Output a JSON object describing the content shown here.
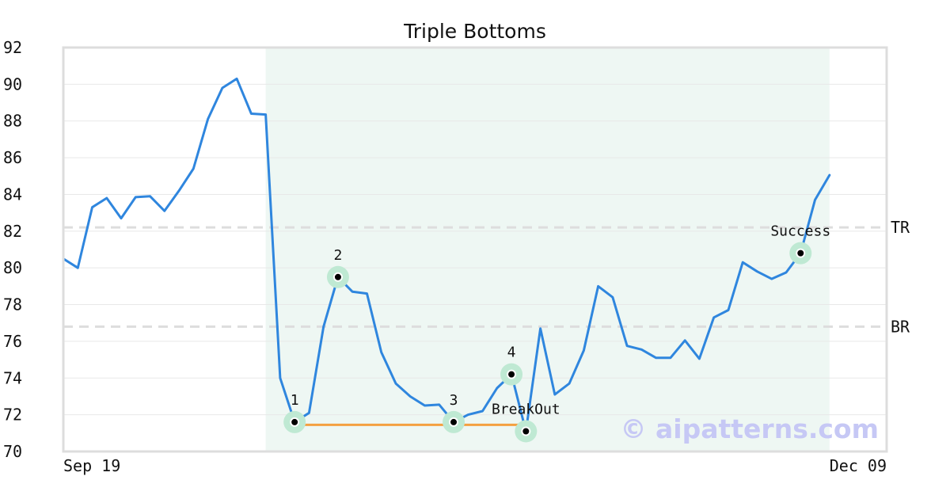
{
  "chart_data": {
    "type": "line",
    "title": "Triple Bottoms",
    "xlabel": "",
    "ylabel": "",
    "ylim": [
      70,
      92
    ],
    "y_ticks": [
      70,
      72,
      74,
      76,
      78,
      80,
      82,
      84,
      86,
      88,
      90,
      92
    ],
    "x_tick_labels": [
      {
        "label": "Sep 19",
        "index": 0
      },
      {
        "label": "Dec 09",
        "index": 57
      }
    ],
    "grid": true,
    "series": [
      {
        "values": [
          80.5,
          80.0,
          83.3,
          83.8,
          82.7,
          83.85,
          83.9,
          83.1,
          84.2,
          85.4,
          88.1,
          89.8,
          90.3,
          88.4,
          88.35,
          74.0,
          71.6,
          72.1,
          76.8,
          79.5,
          78.7,
          78.6,
          75.4,
          73.7,
          73.0,
          72.5,
          72.55,
          71.6,
          72.0,
          72.2,
          73.45,
          74.2,
          71.1,
          76.7,
          73.1,
          73.7,
          75.5,
          79.0,
          78.4,
          75.75,
          75.55,
          75.1,
          75.1,
          76.05,
          75.05,
          77.3,
          77.7,
          80.3,
          79.8,
          79.4,
          79.75,
          80.8,
          83.7,
          85.05
        ]
      }
    ],
    "pattern_region": {
      "start_index": 14,
      "end_index": 53
    },
    "levels": [
      {
        "label": "TR",
        "value": 82.2
      },
      {
        "label": "BR",
        "value": 76.8
      }
    ],
    "support_line": {
      "value": 71.45,
      "start_index": 16,
      "end_index": 32
    },
    "points": [
      {
        "label": "1",
        "index": 16,
        "value": 71.6
      },
      {
        "label": "2",
        "index": 19,
        "value": 79.5
      },
      {
        "label": "3",
        "index": 27,
        "value": 71.6
      },
      {
        "label": "4",
        "index": 31,
        "value": 74.2
      },
      {
        "label": "BreakOut",
        "index": 32,
        "value": 71.1
      },
      {
        "label": "Success",
        "index": 51,
        "value": 80.8
      }
    ],
    "watermark": "© aipatterns.com"
  },
  "colors": {
    "line": "#2f86de",
    "region": "#eef7f3",
    "support": "#f4a040",
    "marker_halo": "#bfe9d3",
    "grid": "#e8e8e8",
    "levels": "#dddddd",
    "frame": "#dddddd"
  }
}
